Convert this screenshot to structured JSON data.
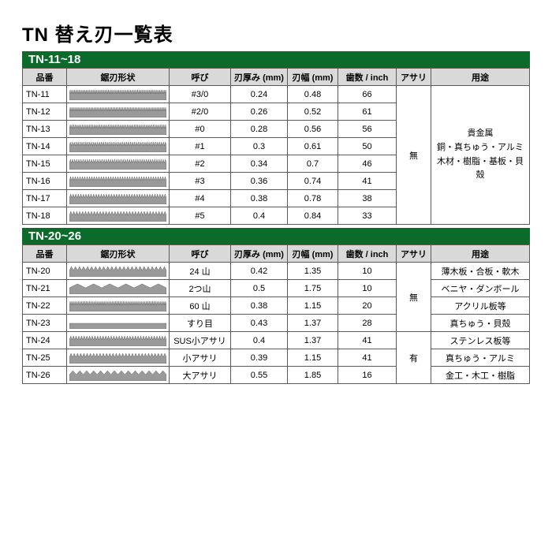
{
  "title": "TN 替え刃一覧表",
  "sections": [
    {
      "bar": "TN-11~18",
      "columns": [
        "品番",
        "鋸刃形状",
        "呼び",
        "刃厚み (mm)",
        "刃幅 (mm)",
        "歯数 / inch",
        "アサリ",
        "用途"
      ],
      "merged_asari": "無",
      "merged_usage": [
        "貴金属",
        "銅・真ちゅう・アルミ",
        "木材・樹脂・基板・貝殻"
      ],
      "rows": [
        {
          "pn": "TN-11",
          "yobi": "#3/0",
          "th": "0.24",
          "wd": "0.48",
          "tpi": "66",
          "teeth": 66
        },
        {
          "pn": "TN-12",
          "yobi": "#2/0",
          "th": "0.26",
          "wd": "0.52",
          "tpi": "61",
          "teeth": 61
        },
        {
          "pn": "TN-13",
          "yobi": "#0",
          "th": "0.28",
          "wd": "0.56",
          "tpi": "56",
          "teeth": 56
        },
        {
          "pn": "TN-14",
          "yobi": "#1",
          "th": "0.3",
          "wd": "0.61",
          "tpi": "50",
          "teeth": 50
        },
        {
          "pn": "TN-15",
          "yobi": "#2",
          "th": "0.34",
          "wd": "0.7",
          "tpi": "46",
          "teeth": 46
        },
        {
          "pn": "TN-16",
          "yobi": "#3",
          "th": "0.36",
          "wd": "0.74",
          "tpi": "41",
          "teeth": 41
        },
        {
          "pn": "TN-17",
          "yobi": "#4",
          "th": "0.38",
          "wd": "0.78",
          "tpi": "38",
          "teeth": 38
        },
        {
          "pn": "TN-18",
          "yobi": "#5",
          "th": "0.4",
          "wd": "0.84",
          "tpi": "33",
          "teeth": 33
        }
      ]
    },
    {
      "bar": "TN-20~26",
      "columns": [
        "品番",
        "鋸刃形状",
        "呼び",
        "刃厚み (mm)",
        "刃幅 (mm)",
        "歯数 / inch",
        "アサリ",
        "用途"
      ],
      "rows": [
        {
          "pn": "TN-20",
          "yobi": "24 山",
          "th": "0.42",
          "wd": "1.35",
          "tpi": "10",
          "teeth": 24,
          "usage": "薄木板・合板・軟木",
          "asari_group": {
            "text": "無",
            "span": 4
          }
        },
        {
          "pn": "TN-21",
          "yobi": "2つ山",
          "th": "0.5",
          "wd": "1.75",
          "tpi": "10",
          "teeth": 6,
          "usage": "ベニヤ・ダンボール"
        },
        {
          "pn": "TN-22",
          "yobi": "60 山",
          "th": "0.38",
          "wd": "1.15",
          "tpi": "20",
          "teeth": 60,
          "usage": "アクリル板等"
        },
        {
          "pn": "TN-23",
          "yobi": "すり目",
          "th": "0.43",
          "wd": "1.37",
          "tpi": "28",
          "teeth": 0,
          "usage": "真ちゅう・貝殻"
        },
        {
          "pn": "TN-24",
          "yobi": "SUS小アサリ",
          "th": "0.4",
          "wd": "1.37",
          "tpi": "41",
          "teeth": 36,
          "usage": "ステンレス板等",
          "asari_group": {
            "text": "有",
            "span": 3
          }
        },
        {
          "pn": "TN-25",
          "yobi": "小アサリ",
          "th": "0.39",
          "wd": "1.15",
          "tpi": "41",
          "teeth": 30,
          "usage": "真ちゅう・アルミ"
        },
        {
          "pn": "TN-26",
          "yobi": "大アサリ",
          "th": "0.55",
          "wd": "1.85",
          "tpi": "16",
          "teeth": 14,
          "usage": "金工・木工・樹脂"
        }
      ]
    }
  ],
  "style": {
    "bar_bg": "#0b6b2b",
    "bar_fg": "#ffffff",
    "header_bg": "#d9d9d9",
    "border": "#5a5a5a",
    "blade_fill": "#9a9a9a",
    "tooth_fill": "#4a4a4a"
  }
}
